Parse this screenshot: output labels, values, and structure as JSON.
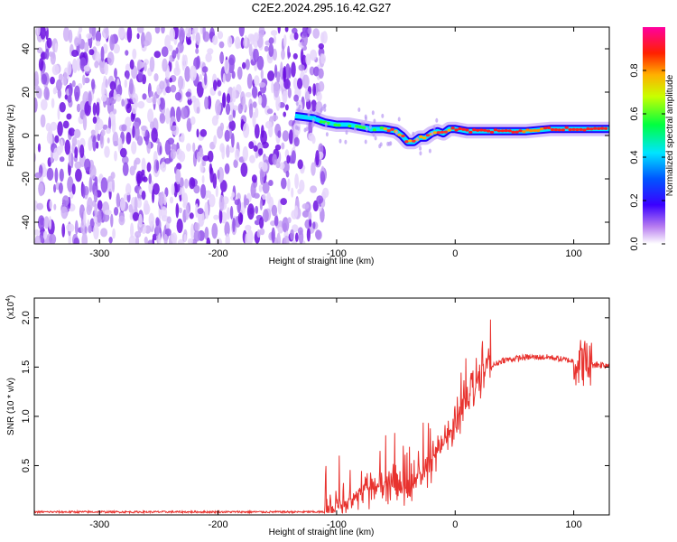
{
  "title": "C2E2.2024.295.16.42.G27",
  "chart_data": [
    {
      "type": "heatmap",
      "name": "spectrogram",
      "xlabel": "Height of straight line (km)",
      "ylabel": "Frequency (Hz)",
      "xlim": [
        -355,
        130
      ],
      "ylim": [
        -50,
        50
      ],
      "xticks": [
        -300,
        -200,
        -100,
        0,
        100
      ],
      "yticks": [
        -40,
        -20,
        0,
        20,
        40
      ],
      "noise_region_x": [
        -355,
        -112
      ],
      "signal_track": {
        "x": [
          -135,
          -120,
          -110,
          -100,
          -90,
          -80,
          -70,
          -60,
          -50,
          -45,
          -40,
          -35,
          -30,
          -25,
          -20,
          -15,
          -10,
          -5,
          0,
          10,
          20,
          40,
          60,
          80,
          100,
          120,
          130
        ],
        "freq": [
          9,
          8,
          6,
          5,
          5,
          4,
          3,
          3,
          2,
          0,
          -3,
          -3,
          -1,
          -1,
          1,
          2,
          1,
          3,
          3,
          2,
          2,
          2,
          2,
          3,
          3,
          3,
          3
        ]
      },
      "colorbar": {
        "label": "Normalized spectral amplitude",
        "ticks": [
          0.0,
          0.2,
          0.4,
          0.6,
          0.8
        ],
        "tick_labels": [
          "0.0",
          "0.2",
          "0.4",
          "0.6",
          "0.8"
        ],
        "range": [
          0,
          1
        ]
      }
    },
    {
      "type": "line",
      "name": "snr",
      "xlabel": "Height of straight line (km)",
      "ylabel": "SNR (10 * v/v)",
      "scale_label": "(x10",
      "scale_exp": "4",
      "xlim": [
        -355,
        130
      ],
      "ylim": [
        0,
        2.2
      ],
      "xticks": [
        -300,
        -200,
        -100,
        0,
        100
      ],
      "yticks": [
        0.5,
        1.0,
        1.5,
        2.0
      ],
      "ytick_labels": [
        "0.5",
        "1.0",
        "1.5",
        "2.0"
      ],
      "color": "#e8322e",
      "envelope": {
        "x": [
          -355,
          -110,
          -100,
          -90,
          -80,
          -70,
          -60,
          -50,
          -40,
          -30,
          -20,
          -10,
          0,
          10,
          20,
          30,
          40,
          60,
          80,
          90,
          100,
          105,
          110,
          115,
          130
        ],
        "y": [
          0.03,
          0.03,
          0.08,
          0.15,
          0.22,
          0.28,
          0.3,
          0.3,
          0.26,
          0.38,
          0.55,
          0.72,
          0.95,
          1.2,
          1.4,
          1.5,
          1.57,
          1.6,
          1.6,
          1.58,
          1.56,
          1.55,
          1.55,
          1.53,
          1.52
        ]
      }
    }
  ],
  "colors": {
    "axis": "#000000",
    "line": "#e8322e",
    "noise": "#7b2ee6"
  }
}
